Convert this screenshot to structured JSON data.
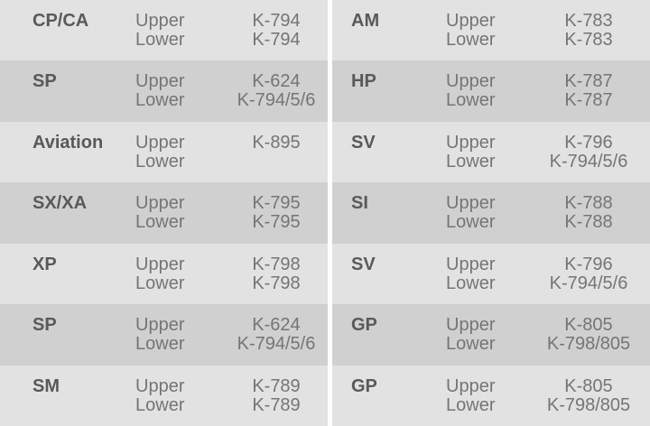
{
  "table": {
    "sub_labels": [
      "Upper",
      "Lower"
    ],
    "colors": {
      "row_light": "#e2e2e3",
      "row_dark": "#d0d0d1",
      "gap": "#ffffff",
      "label_text": "#59595c",
      "body_text": "#747578"
    },
    "columns": [
      {
        "rows": [
          {
            "label": "CP/CA",
            "upper": "K-794",
            "lower": "K-794"
          },
          {
            "label": "SP",
            "upper": "K-624",
            "lower": "K-794/5/6"
          },
          {
            "label": "Aviation",
            "upper": "K-895",
            "lower": ""
          },
          {
            "label": "SX/XA",
            "upper": "K-795",
            "lower": "K-795"
          },
          {
            "label": "XP",
            "upper": "K-798",
            "lower": "K-798"
          },
          {
            "label": "SP",
            "upper": "K-624",
            "lower": "K-794/5/6"
          },
          {
            "label": "SM",
            "upper": "K-789",
            "lower": "K-789"
          }
        ]
      },
      {
        "rows": [
          {
            "label": "AM",
            "upper": "K-783",
            "lower": "K-783"
          },
          {
            "label": "HP",
            "upper": "K-787",
            "lower": "K-787"
          },
          {
            "label": "SV",
            "upper": "K-796",
            "lower": "K-794/5/6"
          },
          {
            "label": "SI",
            "upper": "K-788",
            "lower": "K-788"
          },
          {
            "label": "SV",
            "upper": "K-796",
            "lower": "K-794/5/6"
          },
          {
            "label": "GP",
            "upper": "K-805",
            "lower": "K-798/805"
          },
          {
            "label": "GP",
            "upper": "K-805",
            "lower": "K-798/805"
          }
        ]
      }
    ]
  }
}
